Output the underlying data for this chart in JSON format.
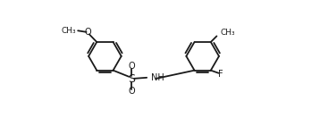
{
  "bg_color": "#ffffff",
  "line_color": "#1a1a1a",
  "line_width": 1.3,
  "font_size": 7.0,
  "fig_width": 3.58,
  "fig_height": 1.32,
  "dpi": 100,
  "xlim": [
    0,
    9.5
  ],
  "ylim": [
    0,
    4.0
  ]
}
